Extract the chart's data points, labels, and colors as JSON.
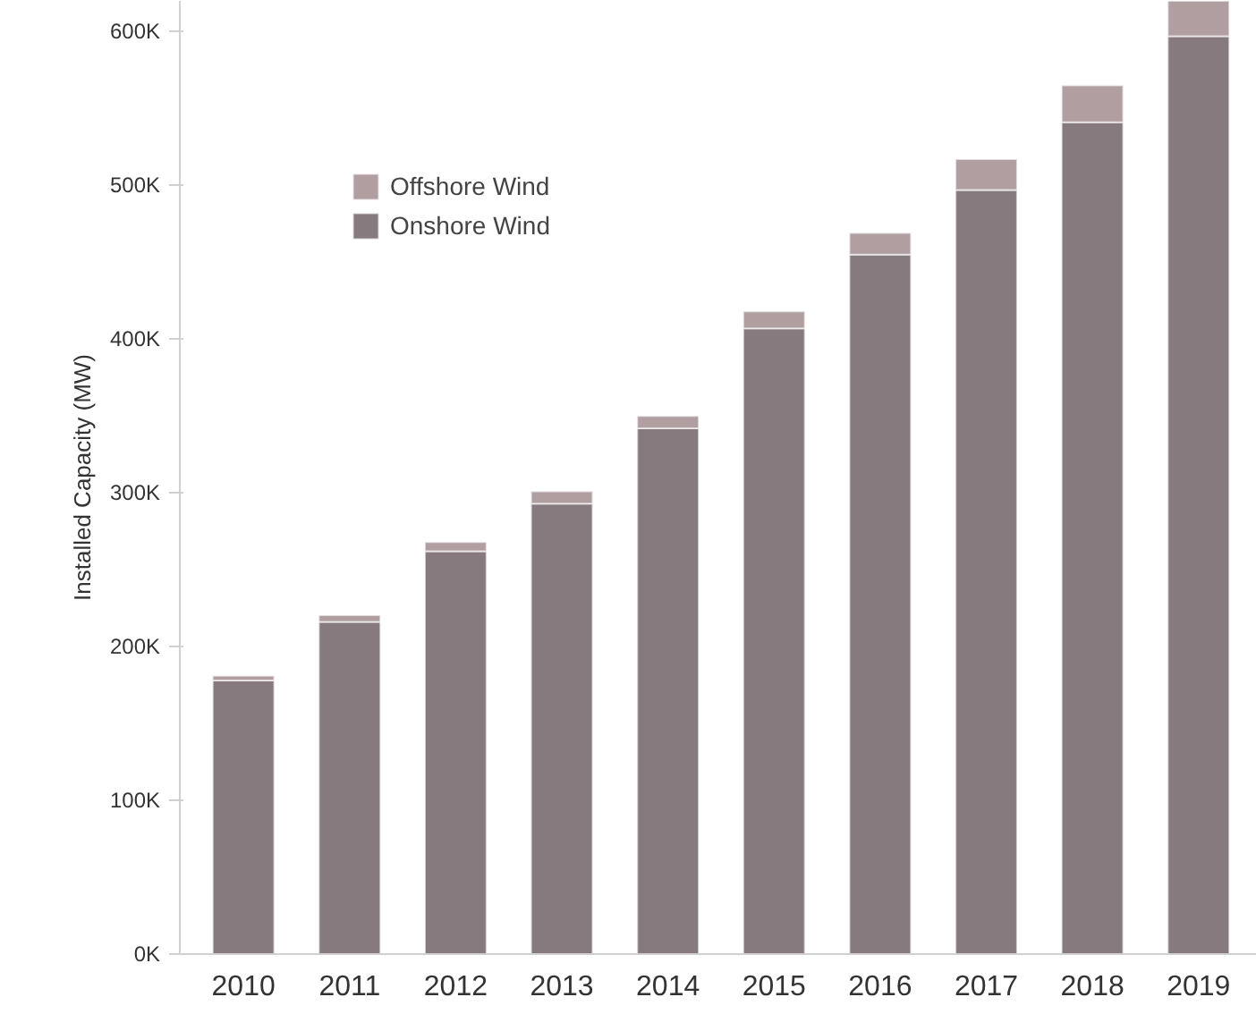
{
  "chart_data": {
    "type": "bar",
    "stacked": true,
    "ylabel": "Installed Capacity (MW)",
    "categories": [
      "2010",
      "2011",
      "2012",
      "2013",
      "2014",
      "2015",
      "2016",
      "2017",
      "2018",
      "2019"
    ],
    "series": [
      {
        "name": "Onshore Wind",
        "color": "#877a7e",
        "values": [
          178000,
          216000,
          262000,
          293000,
          342000,
          407000,
          455000,
          497000,
          541000,
          597000
        ]
      },
      {
        "name": "Offshore Wind",
        "color": "#b09ea1",
        "values": [
          3000,
          4500,
          6000,
          8000,
          8000,
          11000,
          14000,
          20000,
          24000,
          23000
        ]
      }
    ],
    "ylim": [
      0,
      620000
    ],
    "yticks": [
      {
        "value": 0,
        "label": "0K"
      },
      {
        "value": 100000,
        "label": "100K"
      },
      {
        "value": 200000,
        "label": "200K"
      },
      {
        "value": 300000,
        "label": "300K"
      },
      {
        "value": 400000,
        "label": "400K"
      },
      {
        "value": 500000,
        "label": "500K"
      },
      {
        "value": 600000,
        "label": "600K"
      }
    ],
    "grid": false,
    "legend": "top left"
  }
}
